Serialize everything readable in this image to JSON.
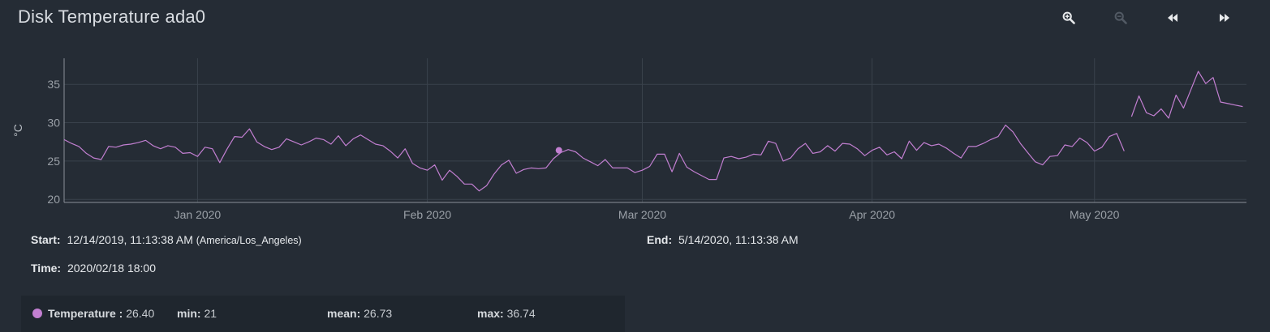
{
  "header": {
    "title": "Disk Temperature ada0",
    "toolbar": [
      {
        "icon": "zoom-in-icon",
        "enabled": true
      },
      {
        "icon": "zoom-out-icon",
        "enabled": false
      },
      {
        "icon": "rewind-icon",
        "enabled": true
      },
      {
        "icon": "fast-forward-icon",
        "enabled": true
      }
    ]
  },
  "info": {
    "start_label": "Start:",
    "start_value": "12/14/2019, 11:13:38 AM",
    "start_tz": "(America/Los_Angeles)",
    "end_label": "End:",
    "end_value": "5/14/2020, 11:13:38 AM",
    "time_label": "Time:",
    "time_value": "2020/02/18 18:00"
  },
  "legend": {
    "series_label": "Temperature :",
    "series_value": "26.40",
    "min_label": "min:",
    "min_value": "21",
    "mean_label": "mean:",
    "mean_value": "26.73",
    "max_label": "max:",
    "max_value": "36.74"
  },
  "colors": {
    "series": "#c27fd1",
    "background": "#252c35",
    "grid": "#3a424c"
  },
  "chart_data": {
    "type": "line",
    "ylabel": "°C",
    "x_range": [
      "2019-12-14",
      "2020-05-14"
    ],
    "ylim": [
      19.6,
      38.4
    ],
    "y_ticks": [
      20,
      25,
      30,
      35
    ],
    "x_ticks": [
      {
        "date": "2020-01-01",
        "label": "Jan 2020"
      },
      {
        "date": "2020-02-01",
        "label": "Feb 2020"
      },
      {
        "date": "2020-03-01",
        "label": "Mar 2020"
      },
      {
        "date": "2020-04-01",
        "label": "Apr 2020"
      },
      {
        "date": "2020-05-01",
        "label": "May 2020"
      }
    ],
    "grid": true,
    "highlight": {
      "x": "2020-02-18 18:00",
      "y": 26.4
    },
    "series": [
      {
        "name": "Temperature",
        "segments": [
          [
            [
              "2019-12-14",
              27.8
            ],
            [
              "2019-12-15",
              27.3
            ],
            [
              "2019-12-16",
              26.9
            ],
            [
              "2019-12-17",
              26.0
            ],
            [
              "2019-12-18",
              25.4
            ],
            [
              "2019-12-19",
              25.2
            ],
            [
              "2019-12-20",
              26.9
            ],
            [
              "2019-12-21",
              26.8
            ],
            [
              "2019-12-22",
              27.1
            ],
            [
              "2019-12-23",
              27.2
            ],
            [
              "2019-12-24",
              27.4
            ],
            [
              "2019-12-25",
              27.7
            ],
            [
              "2019-12-26",
              27.0
            ],
            [
              "2019-12-27",
              26.6
            ],
            [
              "2019-12-28",
              27.0
            ],
            [
              "2019-12-29",
              26.8
            ],
            [
              "2019-12-30",
              26.0
            ],
            [
              "2019-12-31",
              26.1
            ],
            [
              "2020-01-01",
              25.6
            ],
            [
              "2020-01-02",
              26.8
            ],
            [
              "2020-01-03",
              26.6
            ],
            [
              "2020-01-04",
              24.8
            ],
            [
              "2020-01-05",
              26.6
            ],
            [
              "2020-01-06",
              28.2
            ],
            [
              "2020-01-07",
              28.1
            ],
            [
              "2020-01-08",
              29.2
            ],
            [
              "2020-01-09",
              27.5
            ],
            [
              "2020-01-10",
              26.9
            ],
            [
              "2020-01-11",
              26.5
            ],
            [
              "2020-01-12",
              26.8
            ],
            [
              "2020-01-13",
              27.9
            ],
            [
              "2020-01-14",
              27.5
            ],
            [
              "2020-01-15",
              27.1
            ],
            [
              "2020-01-16",
              27.5
            ],
            [
              "2020-01-17",
              28.0
            ],
            [
              "2020-01-18",
              27.8
            ],
            [
              "2020-01-19",
              27.2
            ],
            [
              "2020-01-20",
              28.3
            ],
            [
              "2020-01-21",
              27.0
            ],
            [
              "2020-01-22",
              27.9
            ],
            [
              "2020-01-23",
              28.4
            ],
            [
              "2020-01-24",
              27.8
            ],
            [
              "2020-01-25",
              27.2
            ],
            [
              "2020-01-26",
              27.0
            ],
            [
              "2020-01-27",
              26.3
            ],
            [
              "2020-01-28",
              25.4
            ],
            [
              "2020-01-29",
              26.6
            ],
            [
              "2020-01-30",
              24.7
            ],
            [
              "2020-01-31",
              24.1
            ],
            [
              "2020-02-01",
              23.8
            ],
            [
              "2020-02-02",
              24.5
            ],
            [
              "2020-02-03",
              22.5
            ],
            [
              "2020-02-04",
              23.8
            ],
            [
              "2020-02-05",
              23.0
            ],
            [
              "2020-02-06",
              22.0
            ],
            [
              "2020-02-07",
              22.0
            ],
            [
              "2020-02-08",
              21.1
            ],
            [
              "2020-02-09",
              21.8
            ],
            [
              "2020-02-10",
              23.3
            ],
            [
              "2020-02-11",
              24.5
            ],
            [
              "2020-02-12",
              25.1
            ],
            [
              "2020-02-13",
              23.4
            ],
            [
              "2020-02-14",
              23.9
            ],
            [
              "2020-02-15",
              24.1
            ],
            [
              "2020-02-16",
              24.0
            ],
            [
              "2020-02-17",
              24.1
            ],
            [
              "2020-02-18",
              25.3
            ],
            [
              "2020-02-19",
              26.1
            ],
            [
              "2020-02-20",
              26.5
            ],
            [
              "2020-02-21",
              26.2
            ],
            [
              "2020-02-22",
              25.4
            ],
            [
              "2020-02-23",
              24.9
            ],
            [
              "2020-02-24",
              24.4
            ],
            [
              "2020-02-25",
              25.2
            ],
            [
              "2020-02-26",
              24.1
            ],
            [
              "2020-02-27",
              24.1
            ],
            [
              "2020-02-28",
              24.1
            ],
            [
              "2020-02-29",
              23.5
            ],
            [
              "2020-03-01",
              23.8
            ],
            [
              "2020-03-02",
              24.3
            ],
            [
              "2020-03-03",
              25.9
            ],
            [
              "2020-03-04",
              25.9
            ],
            [
              "2020-03-05",
              23.6
            ],
            [
              "2020-03-06",
              26.0
            ],
            [
              "2020-03-07",
              24.2
            ],
            [
              "2020-03-08",
              23.6
            ],
            [
              "2020-03-09",
              23.1
            ],
            [
              "2020-03-10",
              22.6
            ],
            [
              "2020-03-11",
              22.6
            ],
            [
              "2020-03-12",
              25.4
            ],
            [
              "2020-03-13",
              25.6
            ],
            [
              "2020-03-14",
              25.3
            ],
            [
              "2020-03-15",
              25.5
            ],
            [
              "2020-03-16",
              25.9
            ],
            [
              "2020-03-17",
              25.8
            ],
            [
              "2020-03-18",
              27.6
            ],
            [
              "2020-03-19",
              27.3
            ],
            [
              "2020-03-20",
              25.0
            ],
            [
              "2020-03-21",
              25.4
            ],
            [
              "2020-03-22",
              26.6
            ],
            [
              "2020-03-23",
              27.3
            ],
            [
              "2020-03-24",
              26.0
            ],
            [
              "2020-03-25",
              26.2
            ],
            [
              "2020-03-26",
              27.0
            ],
            [
              "2020-03-27",
              26.3
            ],
            [
              "2020-03-28",
              27.3
            ],
            [
              "2020-03-29",
              27.2
            ],
            [
              "2020-03-30",
              26.6
            ],
            [
              "2020-03-31",
              25.7
            ],
            [
              "2020-04-01",
              26.4
            ],
            [
              "2020-04-02",
              26.8
            ],
            [
              "2020-04-03",
              25.8
            ],
            [
              "2020-04-04",
              26.2
            ],
            [
              "2020-04-05",
              25.3
            ],
            [
              "2020-04-06",
              27.6
            ],
            [
              "2020-04-07",
              26.4
            ],
            [
              "2020-04-08",
              27.4
            ],
            [
              "2020-04-09",
              27.0
            ],
            [
              "2020-04-10",
              27.2
            ],
            [
              "2020-04-11",
              26.7
            ],
            [
              "2020-04-12",
              26.0
            ],
            [
              "2020-04-13",
              25.4
            ],
            [
              "2020-04-14",
              26.9
            ],
            [
              "2020-04-15",
              26.9
            ],
            [
              "2020-04-16",
              27.3
            ],
            [
              "2020-04-17",
              27.8
            ],
            [
              "2020-04-18",
              28.2
            ],
            [
              "2020-04-19",
              29.7
            ],
            [
              "2020-04-20",
              28.8
            ],
            [
              "2020-04-21",
              27.3
            ],
            [
              "2020-04-22",
              26.1
            ],
            [
              "2020-04-23",
              24.9
            ],
            [
              "2020-04-24",
              24.5
            ],
            [
              "2020-04-25",
              25.6
            ],
            [
              "2020-04-26",
              25.7
            ],
            [
              "2020-04-27",
              27.1
            ],
            [
              "2020-04-28",
              26.9
            ],
            [
              "2020-04-29",
              28.0
            ],
            [
              "2020-04-30",
              27.4
            ],
            [
              "2020-05-01",
              26.3
            ],
            [
              "2020-05-02",
              26.8
            ],
            [
              "2020-05-03",
              28.2
            ],
            [
              "2020-05-04",
              28.6
            ],
            [
              "2020-05-05",
              26.3
            ]
          ],
          [
            [
              "2020-05-06",
              30.8
            ],
            [
              "2020-05-07",
              33.5
            ],
            [
              "2020-05-08",
              31.3
            ],
            [
              "2020-05-09",
              30.9
            ],
            [
              "2020-05-10",
              31.8
            ],
            [
              "2020-05-11",
              30.6
            ],
            [
              "2020-05-12",
              33.6
            ],
            [
              "2020-05-13",
              31.9
            ],
            [
              "2020-05-14",
              34.3
            ],
            [
              "2020-05-15",
              36.7
            ],
            [
              "2020-05-16",
              35.1
            ],
            [
              "2020-05-17",
              35.9
            ],
            [
              "2020-05-18",
              32.7
            ],
            [
              "2020-05-19",
              32.5
            ],
            [
              "2020-05-20",
              32.3
            ],
            [
              "2020-05-21",
              32.1
            ]
          ]
        ]
      }
    ]
  }
}
